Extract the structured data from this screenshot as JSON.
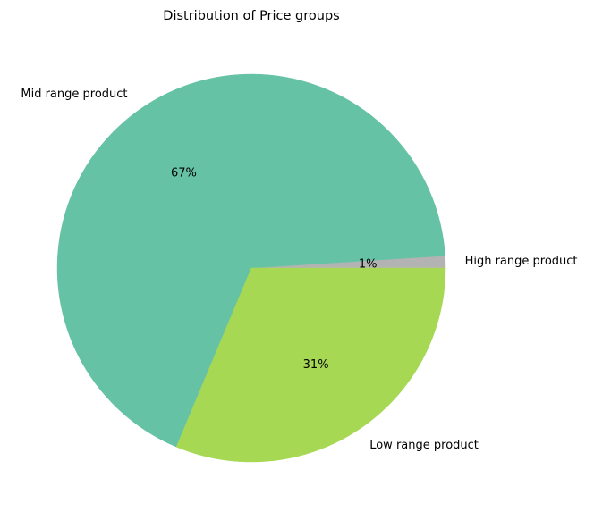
{
  "chart_data": {
    "type": "pie",
    "title": "Distribution of Price groups",
    "slices": [
      {
        "label": "High range product",
        "value": 1,
        "pct_label": "1%",
        "color": "#b3b3b3"
      },
      {
        "label": "Mid range product",
        "value": 67,
        "pct_label": "67%",
        "color": "#66c2a5"
      },
      {
        "label": "Low range product",
        "value": 31,
        "pct_label": "31%",
        "color": "#a6d854"
      }
    ],
    "start_angle_deg": 0,
    "direction": "counterclockwise",
    "legend": "none"
  }
}
